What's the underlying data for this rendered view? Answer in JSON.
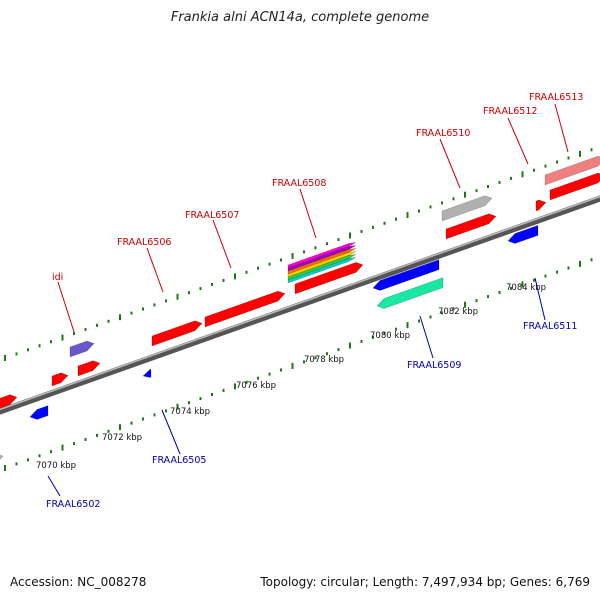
{
  "title": "Frankia alni ACN14a, complete genome",
  "footer": {
    "accession": "Accession: NC_008278",
    "summary": "Topology: circular; Length: 7,497,934 bp; Genes: 6,769"
  },
  "colors": {
    "forward": "#ff0000",
    "reverse": "#0000ff",
    "gray": "#b0b0b0",
    "purple": "#6a55cc",
    "teal": "#19e8a0",
    "pink": "#f08080",
    "label_forward": "#cc0000",
    "label_reverse": "#0000aa"
  },
  "ticks": [
    "7070 kbp",
    "7072 kbp",
    "7074 kbp",
    "7076 kbp",
    "7078 kbp",
    "7080 kbp",
    "7082 kbp",
    "7084 kbp"
  ],
  "genes_forward": [
    "idi",
    "FRAAL6506",
    "FRAAL6507",
    "FRAAL6508",
    "FRAAL6510",
    "FRAAL6512",
    "FRAAL6513"
  ],
  "genes_reverse": [
    "FRAAL6502",
    "FRAAL6505",
    "FRAAL6509",
    "FRAAL6511"
  ]
}
